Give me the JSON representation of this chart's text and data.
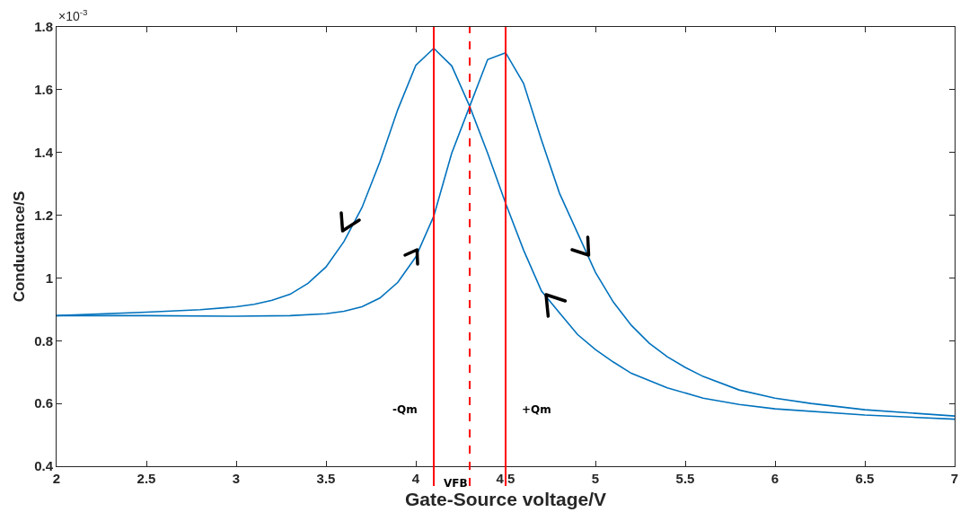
{
  "chart_data": {
    "type": "line",
    "xlabel": "Gate-Source voltage/V",
    "ylabel": "Conductance/S",
    "annotations": [
      "×10$^{-3}$"
    ],
    "xlim": [
      2,
      7
    ],
    "xticks": [
      2,
      2.5,
      3,
      3.5,
      4,
      4.5,
      5,
      5.5,
      6,
      6.5,
      7
    ],
    "ylim": [
      0.4,
      1.8
    ],
    "yticks": [
      0.4,
      0.6,
      0.8,
      1,
      1.2,
      1.4,
      1.6,
      1.8
    ],
    "grid": false,
    "marker": "none",
    "line_style": "solid",
    "series": [
      {
        "color": "#0072bd",
        "x": [
          2,
          2.5,
          2.8,
          3,
          3.1,
          3.2,
          3.3,
          3.4,
          3.5,
          3.6,
          3.7,
          3.8,
          3.9,
          4,
          4.1,
          4.2,
          4.3,
          4.4,
          4.5,
          4.6,
          4.7,
          4.8,
          4.9,
          5,
          5.1,
          5.2,
          5.4,
          5.6,
          5.8,
          6,
          6.5,
          7
        ],
        "values": [
          0.88,
          0.891,
          0.899,
          0.908,
          0.916,
          0.929,
          0.948,
          0.983,
          1.035,
          1.116,
          1.224,
          1.37,
          1.537,
          1.678,
          1.732,
          1.676,
          1.547,
          1.398,
          1.238,
          1.089,
          0.958,
          0.889,
          0.82,
          0.772,
          0.732,
          0.696,
          0.65,
          0.617,
          0.597,
          0.583,
          0.563,
          0.55
        ]
      },
      {
        "color": "#0072bd",
        "x": [
          2,
          2.5,
          3,
          3.3,
          3.5,
          3.6,
          3.7,
          3.8,
          3.9,
          4,
          4.1,
          4.2,
          4.3,
          4.4,
          4.5,
          4.6,
          4.7,
          4.8,
          4.9,
          5,
          5.1,
          5.2,
          5.3,
          5.4,
          5.5,
          5.6,
          5.8,
          6,
          6.2,
          6.5,
          7
        ],
        "values": [
          0.88,
          0.88,
          0.878,
          0.88,
          0.886,
          0.894,
          0.908,
          0.936,
          0.986,
          1.067,
          1.197,
          1.398,
          1.547,
          1.696,
          1.718,
          1.62,
          1.439,
          1.27,
          1.144,
          1.018,
          0.923,
          0.849,
          0.792,
          0.749,
          0.715,
          0.686,
          0.643,
          0.617,
          0.6,
          0.58,
          0.56
        ]
      }
    ],
    "ref_lines": [
      {
        "axis": "x",
        "value": 4.1,
        "label": "-Qm",
        "color": "#ff0000",
        "line_style": "solid"
      },
      {
        "axis": "x",
        "value": 4.3,
        "label": "VFB",
        "color": "#ff0000",
        "line_style": "dashed"
      },
      {
        "axis": "x",
        "value": 4.5,
        "label": "+Qm",
        "color": "#ff0000",
        "line_style": "solid"
      }
    ]
  }
}
